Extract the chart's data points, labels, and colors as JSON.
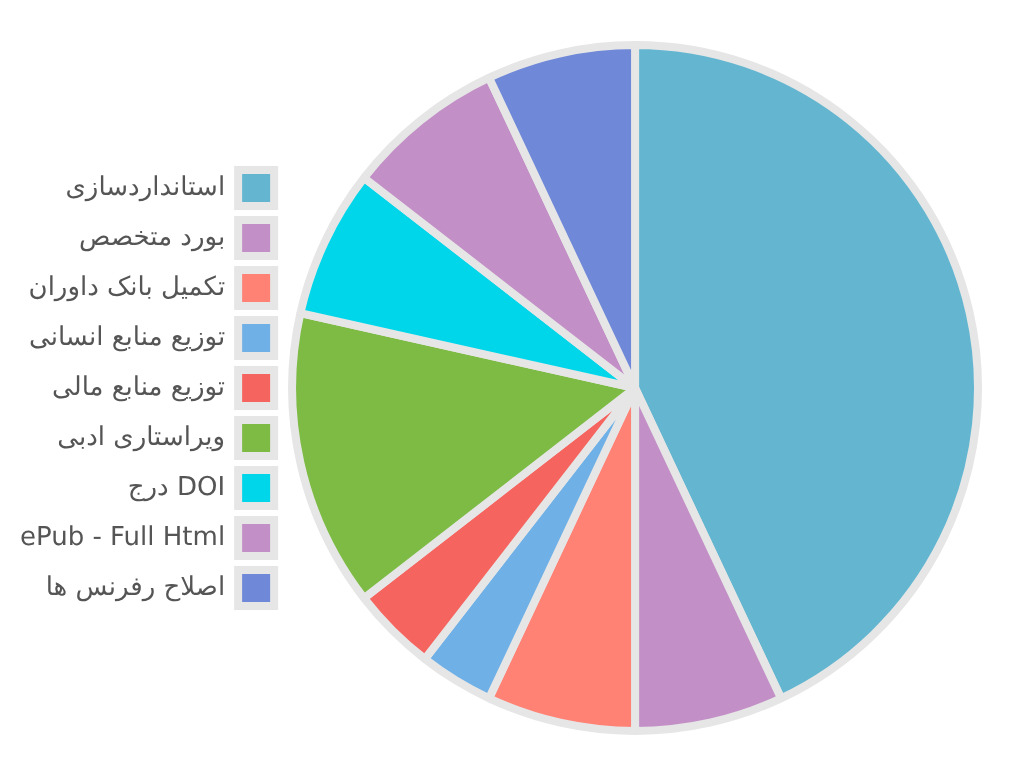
{
  "chart_data": {
    "type": "pie",
    "categories": [
      "استانداردسازی",
      "بورد متخصص",
      "تکمیل بانک داوران",
      "توزیع منابع انسانی",
      "توزیع منابع مالی",
      "ویراستاری ادبی",
      "درج DOI",
      "ePub - Full Html",
      "اصلاح رفرنس ها"
    ],
    "values": [
      43,
      7,
      7,
      3.5,
      4,
      14,
      7,
      7.5,
      7
    ],
    "colors": [
      "#64b6d0",
      "#c290c6",
      "#ff8275",
      "#6fb0e6",
      "#f5645e",
      "#7dbb45",
      "#00d6ea",
      "#c290c6",
      "#6f88d8"
    ],
    "legend": "left"
  }
}
